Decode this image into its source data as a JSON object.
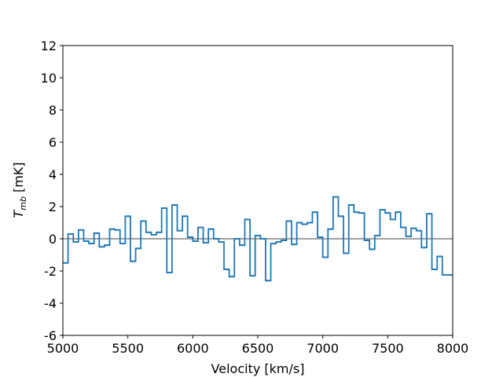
{
  "chart_data": {
    "type": "histogram",
    "xlabel": "Velocity [km/s]",
    "ylabel": {
      "main": "T",
      "sub": "mb",
      "unit": "[mK]"
    },
    "bins": [
      5000,
      5040,
      5080,
      5120,
      5160,
      5200,
      5240,
      5280,
      5320,
      5360,
      5400,
      5440,
      5480,
      5520,
      5560,
      5600,
      5640,
      5680,
      5720,
      5760,
      5800,
      5840,
      5880,
      5920,
      5960,
      6000,
      6040,
      6080,
      6120,
      6160,
      6200,
      6240,
      6280,
      6320,
      6360,
      6400,
      6440,
      6480,
      6520,
      6560,
      6600,
      6640,
      6680,
      6720,
      6760,
      6800,
      6840,
      6880,
      6920,
      6960,
      7000,
      7040,
      7080,
      7120,
      7160,
      7200,
      7240,
      7280,
      7320,
      7360,
      7400,
      7440,
      7480,
      7520,
      7560,
      7600,
      7640,
      7680,
      7720,
      7760,
      7800,
      7840,
      7880,
      7920,
      7960,
      8000
    ],
    "values": [
      -1.5,
      0.3,
      -0.2,
      0.55,
      -0.15,
      -0.3,
      0.35,
      -0.5,
      -0.4,
      0.6,
      0.55,
      -0.3,
      1.4,
      -1.4,
      -0.6,
      1.1,
      0.4,
      0.25,
      0.4,
      1.9,
      -2.1,
      2.1,
      0.5,
      1.4,
      0.1,
      -0.15,
      0.7,
      -0.25,
      0.6,
      0.0,
      -0.2,
      -1.9,
      -2.35,
      0.0,
      -0.4,
      1.2,
      -2.3,
      0.2,
      0.0,
      -2.6,
      -0.3,
      -0.2,
      -0.1,
      1.1,
      -0.35,
      1.0,
      0.9,
      1.0,
      1.65,
      0.1,
      -1.15,
      0.6,
      2.6,
      1.4,
      -0.9,
      2.1,
      1.65,
      1.6,
      -0.1,
      -0.65,
      0.2,
      1.8,
      1.6,
      1.2,
      1.65,
      0.7,
      0.15,
      0.65,
      0.5,
      -0.55,
      1.55,
      -1.9,
      -1.1,
      -2.25,
      -2.25
    ],
    "color": "#1f77b4",
    "baseline": 0,
    "baseline_color": "#808080",
    "xlim": [
      5000,
      8000
    ],
    "xticks": [
      5000,
      5500,
      6000,
      6500,
      7000,
      7500,
      8000
    ],
    "ylim": [
      -6,
      12
    ],
    "yticks": [
      -6,
      -4,
      -2,
      0,
      2,
      4,
      6,
      8,
      10,
      12
    ],
    "grid": false
  }
}
